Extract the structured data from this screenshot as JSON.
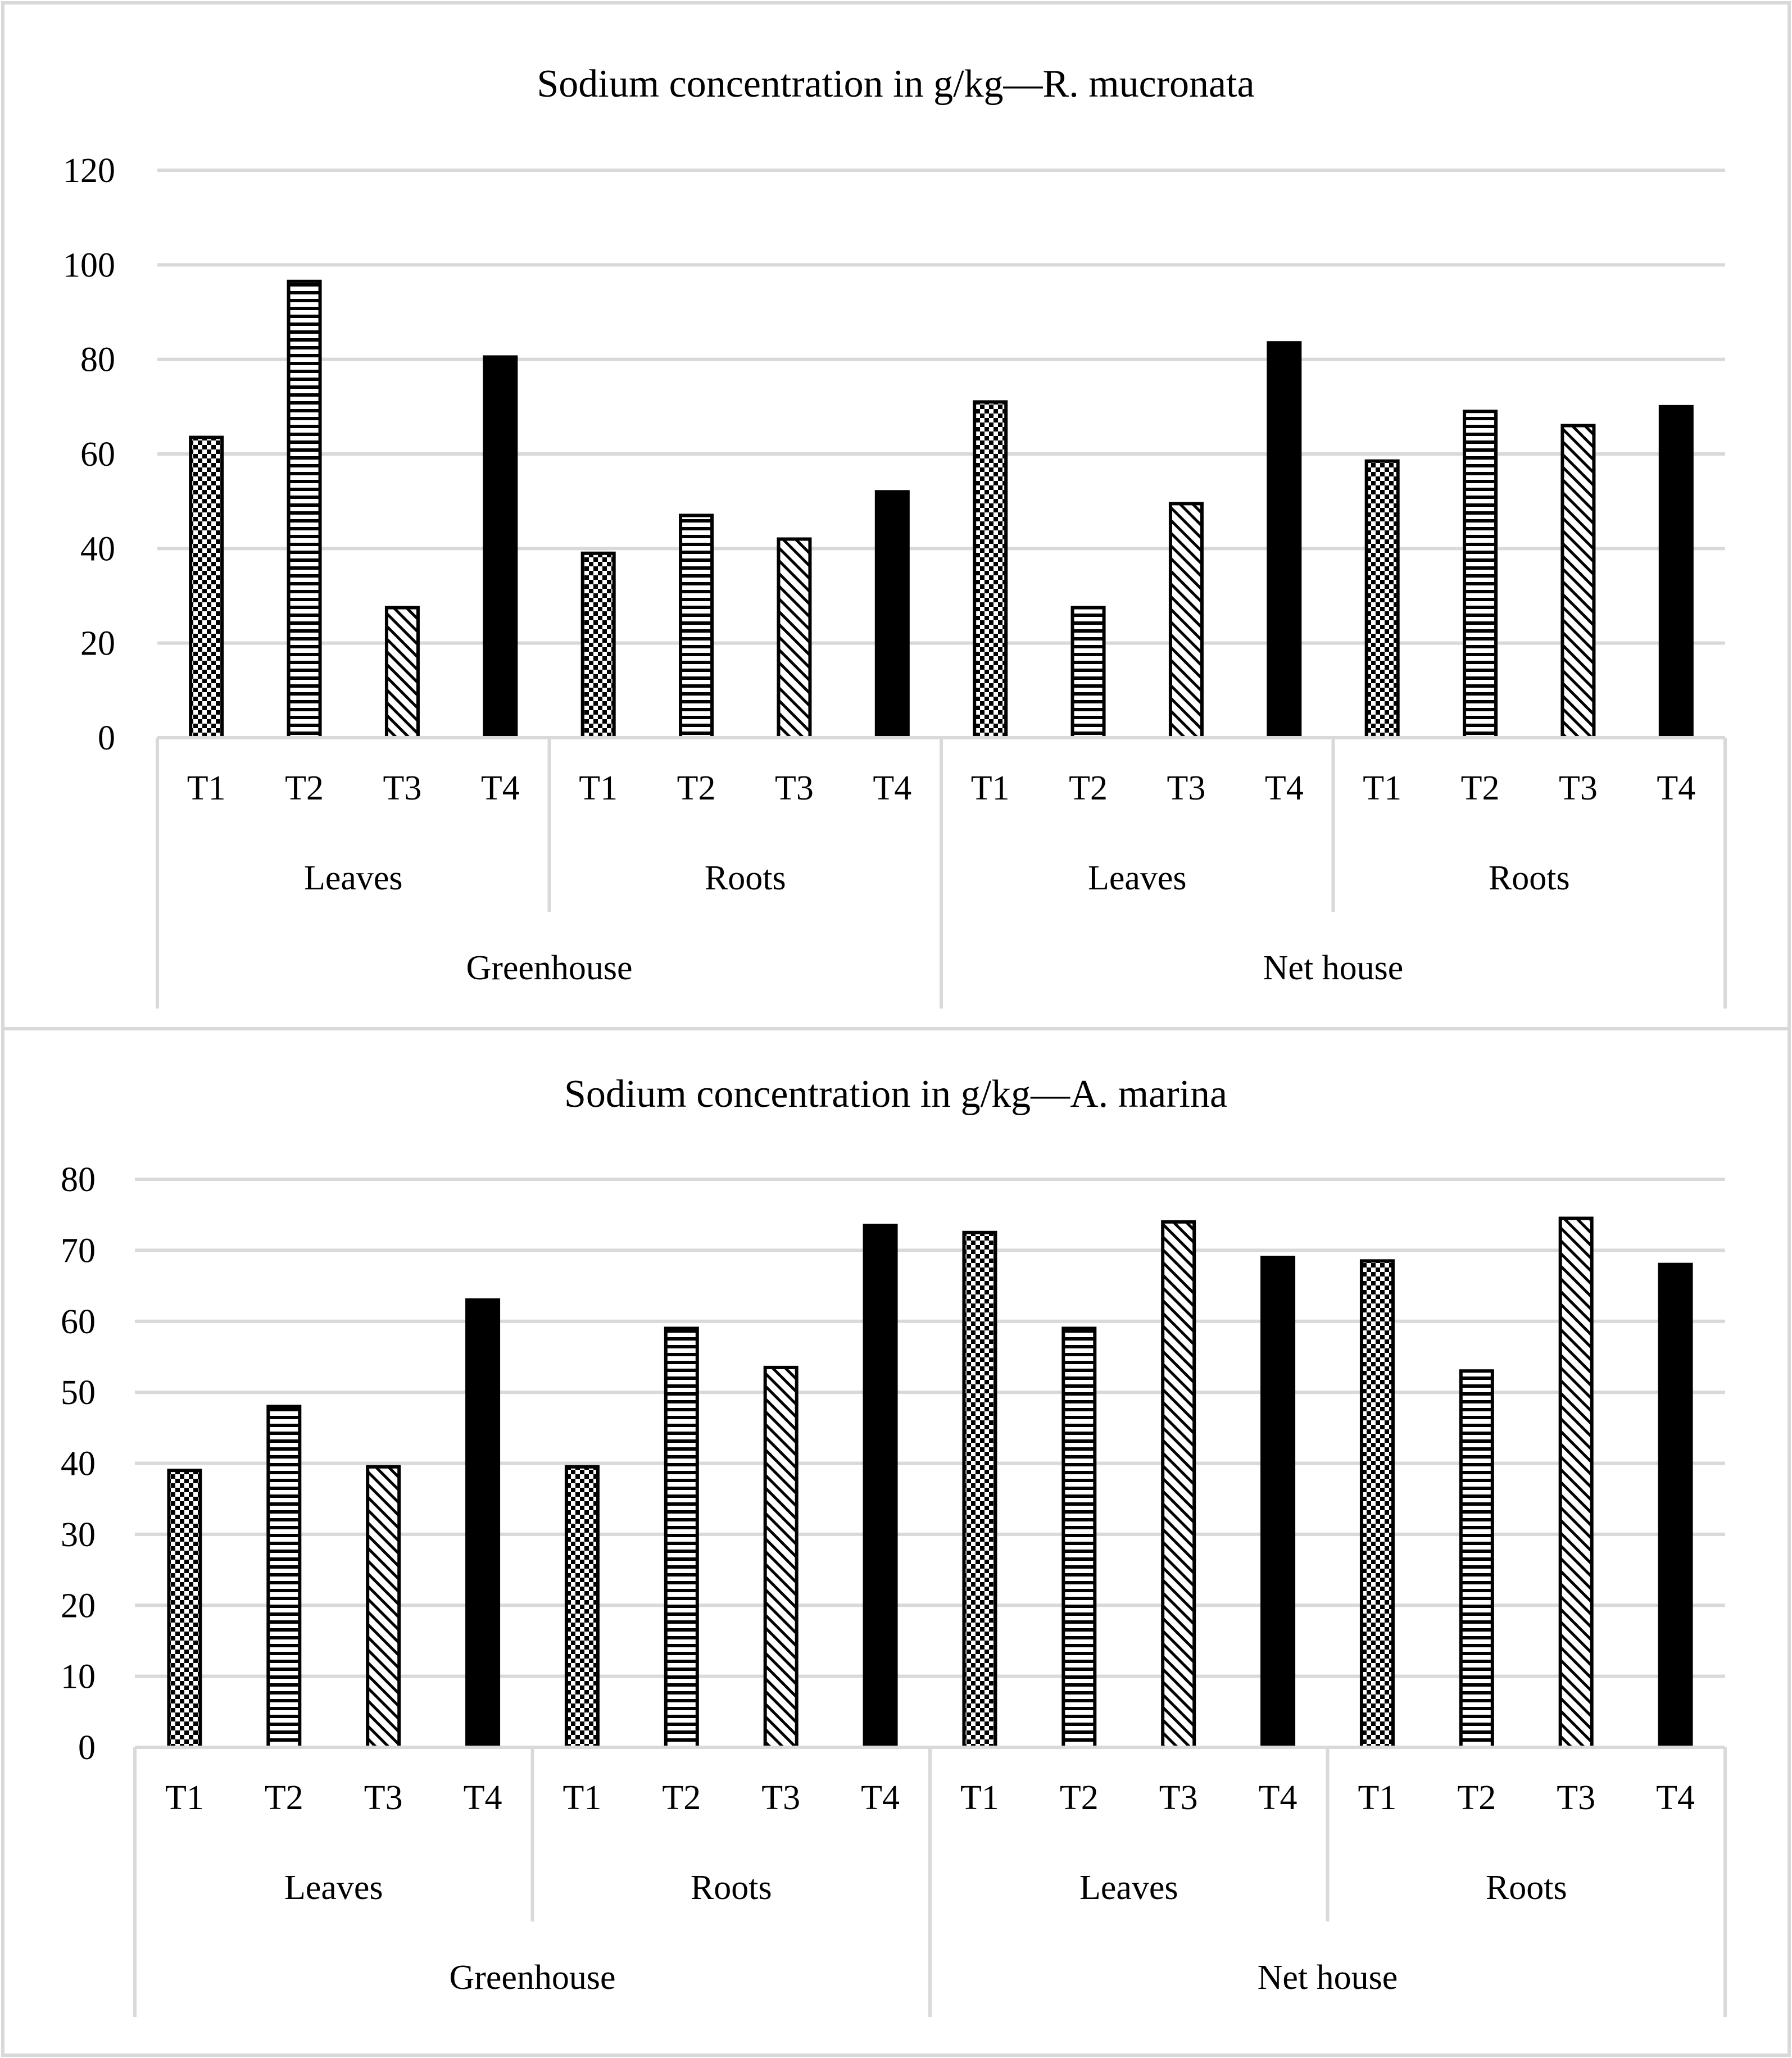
{
  "chart_data": [
    {
      "type": "bar",
      "title": "Sodium concentration in g/kg—R. mucronata",
      "xlabel": "",
      "ylabel": "",
      "ylim": [
        0,
        120
      ],
      "yticks": [
        0,
        20,
        40,
        60,
        80,
        100,
        120
      ],
      "categories": [
        "T1",
        "T2",
        "T3",
        "T4",
        "T1",
        "T2",
        "T3",
        "T4",
        "T1",
        "T2",
        "T3",
        "T4",
        "T1",
        "T2",
        "T3",
        "T4"
      ],
      "tissue_groups": [
        "Leaves",
        "Roots",
        "Leaves",
        "Roots"
      ],
      "location_groups": [
        "Greenhouse",
        "Net house"
      ],
      "values": [
        63.5,
        96.5,
        27.5,
        80.5,
        39,
        47,
        42,
        52,
        71,
        27.5,
        49.5,
        83.5,
        58.5,
        69,
        66,
        70
      ],
      "grid": true,
      "legend": "none"
    },
    {
      "type": "bar",
      "title": "Sodium concentration in g/kg—A. marina",
      "xlabel": "",
      "ylabel": "",
      "ylim": [
        0,
        80
      ],
      "yticks": [
        0,
        10,
        20,
        30,
        40,
        50,
        60,
        70,
        80
      ],
      "categories": [
        "T1",
        "T2",
        "T3",
        "T4",
        "T1",
        "T2",
        "T3",
        "T4",
        "T1",
        "T2",
        "T3",
        "T4",
        "T1",
        "T2",
        "T3",
        "T4"
      ],
      "tissue_groups": [
        "Leaves",
        "Roots",
        "Leaves",
        "Roots"
      ],
      "location_groups": [
        "Greenhouse",
        "Net house"
      ],
      "values": [
        39,
        48,
        39.5,
        63,
        39.5,
        59,
        53.5,
        73.5,
        72.5,
        59,
        74,
        69,
        68.5,
        53,
        74.5,
        68
      ],
      "grid": true,
      "legend": "none"
    }
  ],
  "treatment_patterns": [
    "checker",
    "horizontal-stripes",
    "diagonal-hatch",
    "solid-black"
  ]
}
